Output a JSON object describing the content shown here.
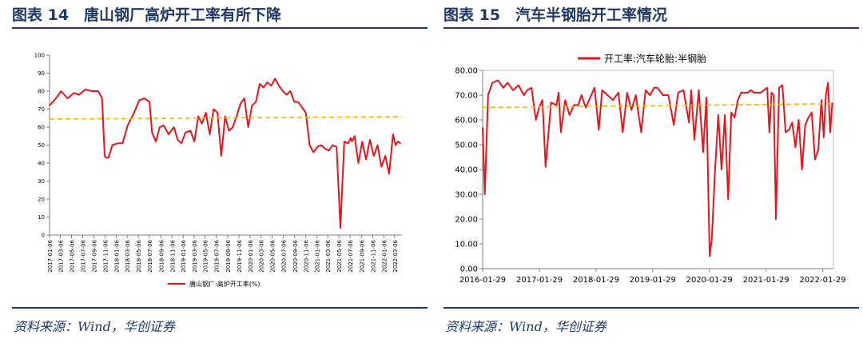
{
  "left": {
    "fig_title": "图表 14　唐山钢厂高炉开工率有所下降",
    "source": "资料来源：Wind，华创证券"
  },
  "right": {
    "fig_title": "图表 15　汽车半钢胎开工率情况",
    "source": "资料来源：Wind，华创证券"
  },
  "chart_data": [
    {
      "type": "line",
      "title": "",
      "xlabel": "",
      "ylabel": "",
      "ylim": [
        0,
        100
      ],
      "yticks": [
        "0",
        "10",
        "20",
        "30",
        "40",
        "50",
        "60",
        "70",
        "80",
        "90",
        "100"
      ],
      "xticks": [
        "2017-01-06",
        "2017-03-06",
        "2017-05-06",
        "2017-07-06",
        "2017-09-06",
        "2017-11-06",
        "2018-01-06",
        "2018-03-06",
        "2018-05-06",
        "2018-07-06",
        "2018-09-06",
        "2018-11-06",
        "2019-01-06",
        "2019-03-06",
        "2019-05-06",
        "2019-07-06",
        "2019-09-06",
        "2019-11-06",
        "2020-01-06",
        "2020-03-06",
        "2020-05-06",
        "2020-07-06",
        "2020-09-06",
        "2020-11-06",
        "2021-01-06",
        "2021-03-06",
        "2021-05-06",
        "2021-07-06",
        "2021-09-06",
        "2021-11-06",
        "2022-01-06",
        "2022-03-06"
      ],
      "legend": "bottom",
      "series": [
        {
          "name": "唐山钢厂:高炉开工率(%)",
          "color": "#e8141c",
          "x": [
            "2017-01-06",
            "2017-02-10",
            "2017-03-10",
            "2017-04-14",
            "2017-05-19",
            "2017-06-16",
            "2017-07-21",
            "2017-08-25",
            "2017-09-29",
            "2017-10-20",
            "2017-11-03",
            "2017-11-10",
            "2017-11-24",
            "2017-12-15",
            "2018-01-12",
            "2018-02-09",
            "2018-03-09",
            "2018-04-13",
            "2018-05-11",
            "2018-06-08",
            "2018-07-06",
            "2018-07-20",
            "2018-08-10",
            "2018-08-31",
            "2018-09-21",
            "2018-10-19",
            "2018-11-16",
            "2018-12-07",
            "2018-12-28",
            "2019-01-18",
            "2019-02-15",
            "2019-03-08",
            "2019-03-29",
            "2019-04-19",
            "2019-05-10",
            "2019-05-31",
            "2019-06-21",
            "2019-07-12",
            "2019-08-02",
            "2019-08-23",
            "2019-09-13",
            "2019-10-04",
            "2019-10-25",
            "2019-11-15",
            "2019-12-06",
            "2019-12-27",
            "2020-01-17",
            "2020-02-07",
            "2020-02-28",
            "2020-03-20",
            "2020-04-10",
            "2020-05-01",
            "2020-05-22",
            "2020-06-12",
            "2020-07-03",
            "2020-07-24",
            "2020-08-14",
            "2020-09-04",
            "2020-09-25",
            "2020-10-16",
            "2020-11-06",
            "2020-11-27",
            "2020-12-18",
            "2021-01-08",
            "2021-01-29",
            "2021-02-19",
            "2021-03-12",
            "2021-04-02",
            "2021-04-23",
            "2021-05-14",
            "2021-06-04",
            "2021-06-25",
            "2021-07-09",
            "2021-07-16",
            "2021-07-30",
            "2021-08-20",
            "2021-09-10",
            "2021-10-01",
            "2021-10-22",
            "2021-11-12",
            "2021-12-03",
            "2021-12-24",
            "2022-01-14",
            "2022-02-04",
            "2022-02-25",
            "2022-03-11",
            "2022-03-25",
            "2022-04-08"
          ],
          "values": [
            72,
            76,
            80,
            76,
            79,
            78,
            81,
            80,
            80,
            76,
            44,
            43,
            43,
            50,
            51,
            51,
            61,
            68,
            75,
            76,
            74,
            57,
            52,
            60,
            61,
            56,
            60,
            53,
            51,
            57,
            58,
            52,
            66,
            62,
            68,
            56,
            70,
            68,
            44,
            66,
            58,
            60,
            66,
            73,
            76,
            60,
            72,
            74,
            84,
            82,
            85,
            83,
            87,
            83,
            80,
            78,
            80,
            74,
            74,
            71,
            68,
            50,
            46,
            49,
            50,
            48,
            47,
            50,
            49,
            4,
            52,
            51,
            54,
            52,
            55,
            40,
            52,
            42,
            53,
            44,
            50,
            38,
            44,
            34,
            56,
            50,
            52,
            51
          ]
        },
        {
          "name": "",
          "color": "#f5b800",
          "dashed": true,
          "x": [
            "2017-01-06",
            "2022-04-15"
          ],
          "values": [
            64.5,
            65.8
          ]
        }
      ]
    },
    {
      "type": "line",
      "title": "",
      "xlabel": "",
      "ylabel": "",
      "ylim": [
        0,
        80
      ],
      "yticks": [
        "0.00",
        "10.00",
        "20.00",
        "30.00",
        "40.00",
        "50.00",
        "60.00",
        "70.00",
        "80.00"
      ],
      "xticks": [
        "2016-01-29",
        "2017-01-29",
        "2018-01-29",
        "2019-01-29",
        "2020-01-29",
        "2021-01-29",
        "2022-01-29"
      ],
      "legend": "top",
      "series": [
        {
          "name": "开工率:汽车轮胎:半钢胎",
          "color": "#e8141c",
          "x": [
            "2016-01-29",
            "2016-02-12",
            "2016-03-04",
            "2016-04-01",
            "2016-05-06",
            "2016-06-10",
            "2016-07-08",
            "2016-08-12",
            "2016-09-16",
            "2016-10-21",
            "2016-11-11",
            "2016-12-09",
            "2017-01-06",
            "2017-01-27",
            "2017-02-17",
            "2017-03-10",
            "2017-04-14",
            "2017-05-19",
            "2017-06-02",
            "2017-06-16",
            "2017-07-14",
            "2017-08-11",
            "2017-09-08",
            "2017-10-06",
            "2017-10-27",
            "2017-11-24",
            "2017-12-22",
            "2018-01-19",
            "2018-02-16",
            "2018-03-09",
            "2018-04-13",
            "2018-05-18",
            "2018-06-22",
            "2018-07-20",
            "2018-08-17",
            "2018-09-14",
            "2018-10-12",
            "2018-11-16",
            "2018-12-14",
            "2019-01-11",
            "2019-02-08",
            "2019-03-01",
            "2019-04-05",
            "2019-05-10",
            "2019-06-14",
            "2019-07-12",
            "2019-08-16",
            "2019-09-20",
            "2019-10-04",
            "2019-10-25",
            "2019-11-22",
            "2019-12-20",
            "2020-01-10",
            "2020-01-31",
            "2020-02-14",
            "2020-03-06",
            "2020-03-27",
            "2020-04-17",
            "2020-05-08",
            "2020-05-29",
            "2020-06-19",
            "2020-07-10",
            "2020-07-31",
            "2020-08-21",
            "2020-09-11",
            "2020-10-02",
            "2020-10-23",
            "2020-11-13",
            "2020-12-04",
            "2020-12-25",
            "2021-01-15",
            "2021-02-05",
            "2021-02-19",
            "2021-03-05",
            "2021-03-19",
            "2021-04-02",
            "2021-04-23",
            "2021-05-14",
            "2021-06-04",
            "2021-06-25",
            "2021-07-16",
            "2021-08-06",
            "2021-08-27",
            "2021-09-17",
            "2021-10-08",
            "2021-10-29",
            "2021-11-19",
            "2021-12-10",
            "2021-12-31",
            "2022-01-21",
            "2022-02-04",
            "2022-02-18",
            "2022-03-04",
            "2022-03-18",
            "2022-04-01"
          ],
          "values": [
            57,
            30,
            70,
            75,
            76,
            73,
            75,
            72,
            74,
            70,
            72,
            73,
            60,
            65,
            68,
            41,
            67,
            66,
            71,
            55,
            68,
            62,
            66,
            66,
            70,
            65,
            69,
            73,
            56,
            72,
            70,
            68,
            71,
            55,
            71,
            64,
            70,
            55,
            72,
            70,
            73,
            73,
            70,
            70,
            58,
            71,
            72,
            59,
            72,
            52,
            72,
            47,
            69,
            5,
            12,
            40,
            62,
            40,
            62,
            28,
            63,
            61,
            68,
            71,
            71,
            71,
            72,
            71,
            71,
            71,
            72,
            73,
            55,
            71,
            70,
            20,
            73,
            74,
            55,
            56,
            59,
            49,
            60,
            40,
            58,
            61,
            63,
            44,
            48,
            68,
            53,
            70,
            75,
            55,
            67
          ]
        },
        {
          "name": "",
          "color": "#f5b800",
          "dashed": true,
          "x": [
            "2016-01-29",
            "2022-04-08"
          ],
          "values": [
            65,
            66.5
          ]
        }
      ]
    }
  ]
}
